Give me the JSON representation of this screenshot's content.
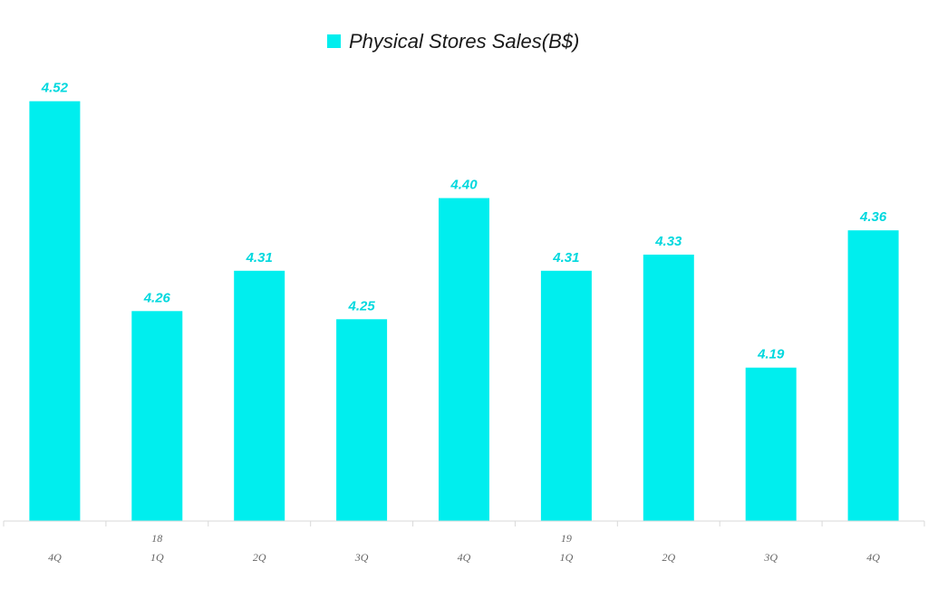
{
  "chart_data": {
    "type": "bar",
    "legend_position": "top-center",
    "grid": false,
    "bar_color": "#00EEEE",
    "label_color": "#00D8DE",
    "series": [
      {
        "name": "Physical Stores Sales(B$)",
        "values": [
          4.52,
          4.26,
          4.31,
          4.25,
          4.4,
          4.31,
          4.33,
          4.19,
          4.36
        ]
      }
    ],
    "categories": [
      "4Q",
      "1Q",
      "2Q",
      "3Q",
      "4Q",
      "1Q",
      "2Q",
      "3Q",
      "4Q"
    ],
    "year_labels": [
      {
        "category_index": 1,
        "label": "18"
      },
      {
        "category_index": 5,
        "label": "19"
      }
    ],
    "ylim": [
      4.0,
      4.55
    ]
  }
}
